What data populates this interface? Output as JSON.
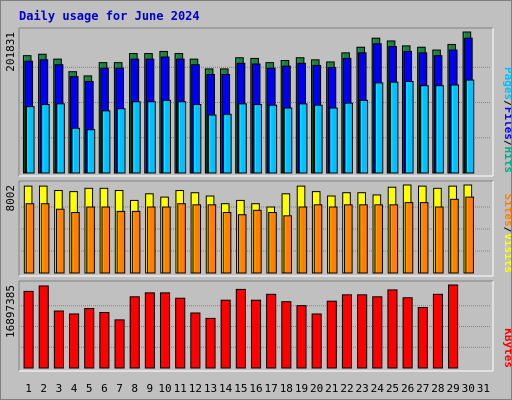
{
  "chart_data": [
    {
      "type": "bar",
      "title": "Daily usage for June 2024",
      "categories": [
        "1",
        "2",
        "3",
        "4",
        "5",
        "6",
        "7",
        "8",
        "9",
        "10",
        "11",
        "12",
        "13",
        "14",
        "15",
        "16",
        "17",
        "18",
        "19",
        "20",
        "21",
        "22",
        "23",
        "24",
        "25",
        "26",
        "27",
        "28",
        "29",
        "30",
        "31"
      ],
      "weekend_day_indices": [
        0,
        1,
        7,
        8,
        14,
        15,
        21,
        22,
        28,
        29
      ],
      "panel": "hits-files-pages",
      "y_max_label": "201831",
      "ylim": [
        0,
        201831
      ],
      "legend": [
        {
          "text": "Pages",
          "color": "#00c0ff"
        },
        {
          "text": "/",
          "color": "#000000"
        },
        {
          "text": "Files",
          "color": "#0000ff"
        },
        {
          "text": "/",
          "color": "#000000"
        },
        {
          "text": "Hits",
          "color": "#00aa88"
        }
      ],
      "series": [
        {
          "name": "Hits",
          "color": "#208040",
          "values": [
            168000,
            170000,
            163000,
            145000,
            139000,
            158000,
            158000,
            171000,
            171000,
            174000,
            171000,
            163000,
            149000,
            149000,
            165000,
            164000,
            158000,
            161000,
            165000,
            162000,
            159000,
            172000,
            180000,
            193000,
            189000,
            182000,
            180000,
            176000,
            184000,
            201831,
            0
          ]
        },
        {
          "name": "Files",
          "color": "#0000ee",
          "values": [
            160000,
            162000,
            155000,
            138000,
            131000,
            150000,
            150000,
            163000,
            163000,
            166000,
            163000,
            155000,
            141000,
            141000,
            157000,
            156000,
            150000,
            153000,
            157000,
            154000,
            151000,
            164000,
            172000,
            185000,
            181000,
            174000,
            172000,
            168000,
            176000,
            193000,
            0
          ]
        },
        {
          "name": "Pages",
          "color": "#00c0ff",
          "values": [
            95000,
            98000,
            99000,
            64000,
            62000,
            89000,
            92000,
            102000,
            102000,
            104000,
            102000,
            98000,
            83000,
            84000,
            99000,
            98000,
            97000,
            93000,
            99000,
            97000,
            93000,
            100000,
            104000,
            129000,
            130000,
            131000,
            125000,
            125000,
            126000,
            133000,
            0
          ]
        }
      ]
    },
    {
      "type": "bar",
      "panel": "visits-sites",
      "y_max_label": "8002",
      "ylim": [
        0,
        8002
      ],
      "legend": [
        {
          "text": "Sites",
          "color": "#ff8000"
        },
        {
          "text": "/",
          "color": "#000000"
        },
        {
          "text": "Visits",
          "color": "#ffff00"
        }
      ],
      "series": [
        {
          "name": "Visits",
          "color": "#ffff00",
          "values": [
            7900,
            7900,
            7500,
            7400,
            7700,
            7700,
            7500,
            6600,
            7200,
            6900,
            7500,
            7300,
            7000,
            6300,
            6600,
            6300,
            6000,
            7200,
            7900,
            7400,
            7000,
            7300,
            7300,
            7100,
            7800,
            8002,
            7900,
            7700,
            7900,
            8002,
            0
          ]
        },
        {
          "name": "Sites",
          "color": "#ff8000",
          "values": [
            6300,
            6300,
            5800,
            5500,
            6000,
            6000,
            5600,
            5600,
            6000,
            6000,
            6300,
            6200,
            6200,
            5500,
            5300,
            5700,
            5500,
            5200,
            6000,
            6200,
            6000,
            6200,
            6200,
            6200,
            6200,
            6400,
            6400,
            6000,
            6700,
            6900,
            0
          ]
        }
      ]
    },
    {
      "type": "bar",
      "panel": "kbytes",
      "y_max_label": "16897385",
      "ylim": [
        0,
        16897385
      ],
      "legend": [
        {
          "text": "KBytes",
          "color": "#ff0000"
        }
      ],
      "series": [
        {
          "name": "KBytes",
          "color": "#ff0000",
          "values": [
            15600000,
            16700000,
            11600000,
            11000000,
            12100000,
            11300000,
            9800000,
            14500000,
            15300000,
            15300000,
            14200000,
            11200000,
            10100000,
            13800000,
            16000000,
            13800000,
            15000000,
            13500000,
            12700000,
            11000000,
            13600000,
            14900000,
            14900000,
            14500000,
            15900000,
            14300000,
            12300000,
            15000000,
            16897385,
            0,
            0
          ]
        }
      ]
    }
  ]
}
